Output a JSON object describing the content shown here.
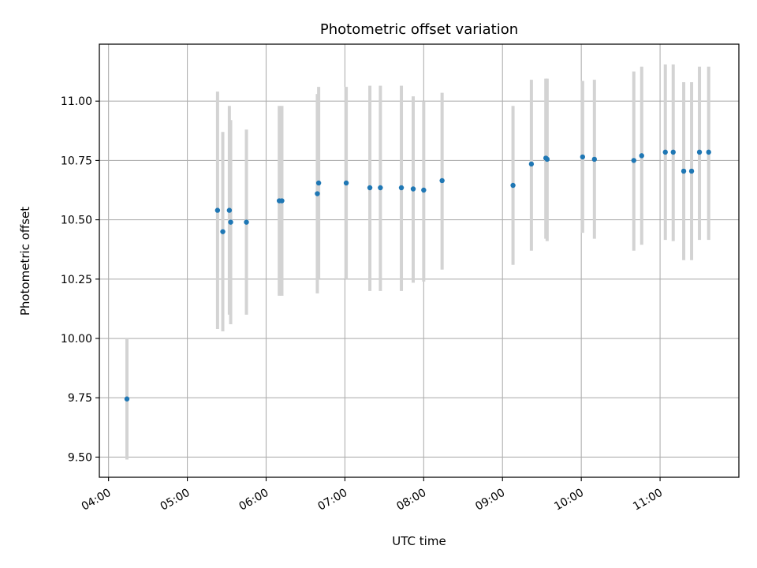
{
  "chart_data": {
    "type": "scatter",
    "title": "Photometric offset variation",
    "xlabel": "UTC time",
    "ylabel": "Photometric offset",
    "xlim": [
      "03:53",
      "12:00"
    ],
    "ylim": [
      9.415,
      11.24
    ],
    "grid": true,
    "x_ticks": [
      "04:00",
      "05:00",
      "06:00",
      "07:00",
      "08:00",
      "09:00",
      "10:00",
      "11:00"
    ],
    "y_ticks": [
      "9.50",
      "9.75",
      "10.00",
      "10.25",
      "10.50",
      "10.75",
      "11.00"
    ],
    "colors": {
      "marker": "#1f77b4",
      "errorbar": "#d3d3d3",
      "grid": "#b0b0b0"
    },
    "points": [
      {
        "x": "04:14",
        "y": 9.745,
        "lo": 9.49,
        "hi": 10.0
      },
      {
        "x": "05:23",
        "y": 10.54,
        "lo": 10.04,
        "hi": 11.04
      },
      {
        "x": "05:27",
        "y": 10.45,
        "lo": 10.03,
        "hi": 10.87
      },
      {
        "x": "05:32",
        "y": 10.54,
        "lo": 10.1,
        "hi": 10.98
      },
      {
        "x": "05:33",
        "y": 10.49,
        "lo": 10.06,
        "hi": 10.92
      },
      {
        "x": "05:45",
        "y": 10.49,
        "lo": 10.1,
        "hi": 10.88
      },
      {
        "x": "06:10",
        "y": 10.58,
        "lo": 10.18,
        "hi": 10.98
      },
      {
        "x": "06:12",
        "y": 10.58,
        "lo": 10.18,
        "hi": 10.98
      },
      {
        "x": "06:39",
        "y": 10.61,
        "lo": 10.19,
        "hi": 11.03
      },
      {
        "x": "06:40",
        "y": 10.655,
        "lo": 10.25,
        "hi": 11.06
      },
      {
        "x": "07:01",
        "y": 10.655,
        "lo": 10.25,
        "hi": 11.06
      },
      {
        "x": "07:19",
        "y": 10.635,
        "lo": 10.2,
        "hi": 11.065
      },
      {
        "x": "07:27",
        "y": 10.635,
        "lo": 10.2,
        "hi": 11.065
      },
      {
        "x": "07:43",
        "y": 10.635,
        "lo": 10.2,
        "hi": 11.065
      },
      {
        "x": "07:52",
        "y": 10.63,
        "lo": 10.235,
        "hi": 11.02
      },
      {
        "x": "08:00",
        "y": 10.625,
        "lo": 10.24,
        "hi": 11.0
      },
      {
        "x": "08:14",
        "y": 10.665,
        "lo": 10.29,
        "hi": 11.035
      },
      {
        "x": "09:08",
        "y": 10.645,
        "lo": 10.31,
        "hi": 10.98
      },
      {
        "x": "09:22",
        "y": 10.735,
        "lo": 10.37,
        "hi": 11.09
      },
      {
        "x": "09:33",
        "y": 10.76,
        "lo": 10.42,
        "hi": 11.095
      },
      {
        "x": "09:34",
        "y": 10.755,
        "lo": 10.41,
        "hi": 11.095
      },
      {
        "x": "10:01",
        "y": 10.765,
        "lo": 10.445,
        "hi": 11.085
      },
      {
        "x": "10:10",
        "y": 10.755,
        "lo": 10.42,
        "hi": 11.09
      },
      {
        "x": "10:40",
        "y": 10.75,
        "lo": 10.37,
        "hi": 11.125
      },
      {
        "x": "10:46",
        "y": 10.77,
        "lo": 10.395,
        "hi": 11.145
      },
      {
        "x": "11:04",
        "y": 10.785,
        "lo": 10.415,
        "hi": 11.155
      },
      {
        "x": "11:10",
        "y": 10.785,
        "lo": 10.41,
        "hi": 11.155
      },
      {
        "x": "11:18",
        "y": 10.705,
        "lo": 10.33,
        "hi": 11.08
      },
      {
        "x": "11:24",
        "y": 10.705,
        "lo": 10.33,
        "hi": 11.08
      },
      {
        "x": "11:30",
        "y": 10.785,
        "lo": 10.415,
        "hi": 11.145
      },
      {
        "x": "11:37",
        "y": 10.785,
        "lo": 10.415,
        "hi": 11.145
      }
    ]
  }
}
